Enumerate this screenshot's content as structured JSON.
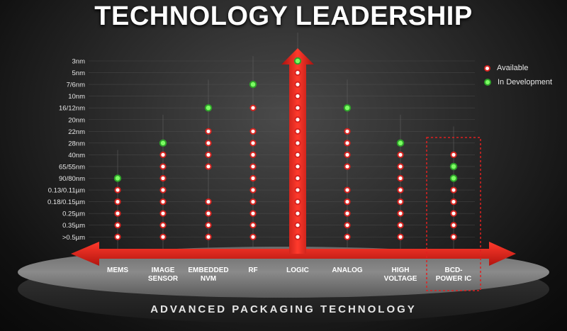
{
  "title": "TECHNOLOGY LEADERSHIP",
  "legend": [
    {
      "label": "Available",
      "status": "available"
    },
    {
      "label": "In Development",
      "status": "development"
    }
  ],
  "bottom_label": "ADVANCED PACKAGING TECHNOLOGY",
  "colors": {
    "available_fill": "#ffffff",
    "available_ring": "#d9231f",
    "development_fill": "#7cff63",
    "development_ring": "#2fa32a",
    "arrow": "#e0201b"
  },
  "chart_data": {
    "type": "scatter",
    "nodes": [
      "3nm",
      "5nm",
      "7/6nm",
      "10nm",
      "16/12nm",
      "20nm",
      "22nm",
      "28nm",
      "40nm",
      "65/55nm",
      "90/80nm",
      "0.13/0.11µm",
      "0.18/0.15µm",
      "0.25µm",
      "0.35µm",
      ">0.5µm"
    ],
    "categories": [
      {
        "name": "MEMS",
        "label_lines": [
          "MEMS"
        ],
        "available": [
          ">0.5µm",
          "0.35µm",
          "0.25µm",
          "0.18/0.15µm",
          "0.13/0.11µm"
        ],
        "development": [
          "90/80nm"
        ]
      },
      {
        "name": "IMAGE SENSOR",
        "label_lines": [
          "IMAGE",
          "SENSOR"
        ],
        "available": [
          ">0.5µm",
          "0.35µm",
          "0.25µm",
          "0.18/0.15µm",
          "0.13/0.11µm",
          "90/80nm",
          "65/55nm",
          "40nm"
        ],
        "development": [
          "28nm"
        ]
      },
      {
        "name": "EMBEDDED NVM",
        "label_lines": [
          "EMBEDDED",
          "NVM"
        ],
        "available": [
          ">0.5µm",
          "0.35µm",
          "0.25µm",
          "0.18/0.15µm",
          "65/55nm",
          "40nm",
          "28nm",
          "22nm"
        ],
        "development": [
          "16/12nm"
        ]
      },
      {
        "name": "RF",
        "label_lines": [
          "RF"
        ],
        "available": [
          ">0.5µm",
          "0.35µm",
          "0.25µm",
          "0.18/0.15µm",
          "0.13/0.11µm",
          "90/80nm",
          "65/55nm",
          "40nm",
          "28nm",
          "22nm",
          "16/12nm"
        ],
        "development": [
          "7/6nm"
        ]
      },
      {
        "name": "LOGIC",
        "label_lines": [
          "LOGIC"
        ],
        "available": [
          ">0.5µm",
          "0.35µm",
          "0.25µm",
          "0.18/0.15µm",
          "0.13/0.11µm",
          "90/80nm",
          "65/55nm",
          "40nm",
          "28nm",
          "22nm",
          "20nm",
          "16/12nm",
          "10nm",
          "7/6nm",
          "5nm"
        ],
        "development": [
          "3nm"
        ]
      },
      {
        "name": "ANALOG",
        "label_lines": [
          "ANALOG"
        ],
        "available": [
          ">0.5µm",
          "0.35µm",
          "0.25µm",
          "0.18/0.15µm",
          "0.13/0.11µm",
          "65/55nm",
          "40nm",
          "28nm",
          "22nm"
        ],
        "development": [
          "16/12nm"
        ]
      },
      {
        "name": "HIGH VOLTAGE",
        "label_lines": [
          "HIGH",
          "VOLTAGE"
        ],
        "available": [
          ">0.5µm",
          "0.35µm",
          "0.25µm",
          "0.18/0.15µm",
          "0.13/0.11µm",
          "90/80nm",
          "65/55nm",
          "40nm"
        ],
        "development": [
          "28nm"
        ]
      },
      {
        "name": "BCD-POWER IC",
        "label_lines": [
          "BCD-",
          "POWER IC"
        ],
        "available": [
          ">0.5µm",
          "0.35µm",
          "0.25µm",
          "0.18/0.15µm",
          "0.13/0.11µm",
          "40nm"
        ],
        "development": [
          "90/80nm",
          "65/55nm"
        ],
        "highlighted": true
      }
    ],
    "legend_position": "top-right"
  }
}
